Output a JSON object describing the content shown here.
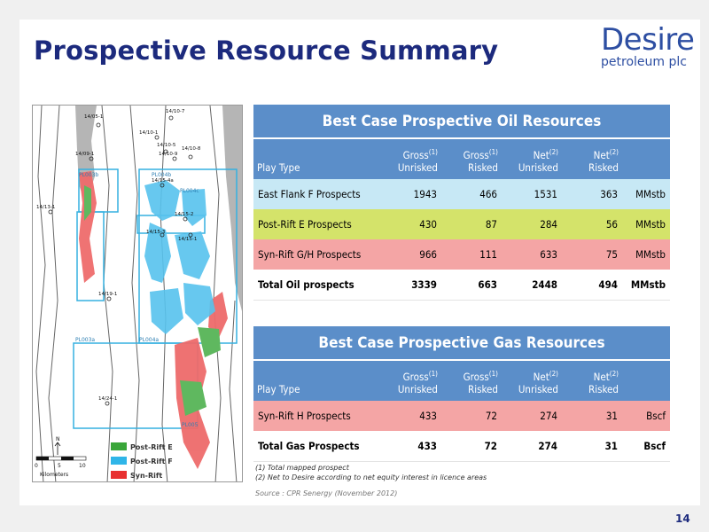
{
  "title": "Prospective Resource Summary",
  "logo": {
    "line1": "Desire",
    "line2": "petroleum plc"
  },
  "map": {
    "labels": {
      "pl003b": "PL003b",
      "pl004b": "PL004b",
      "pl004c": "PL004c",
      "pl003a": "PL003a",
      "pl004a": "PL004a",
      "pl005": "PL005",
      "w1": "14/05-1",
      "w2": "14/09-1",
      "w3": "14/10-7",
      "w4": "14/10-1",
      "w5": "14/10-5",
      "w6": "14/10-9",
      "w7": "14/10-8",
      "w8": "14/13-1",
      "w9": "14/15-4a",
      "w10": "14/15-2",
      "w11": "14/15-3",
      "w12": "14/15-1",
      "w13": "14/19-1",
      "w14": "14/24-1"
    },
    "scale": {
      "ticks": [
        "0",
        "5",
        "10"
      ],
      "unit": "Kilometers",
      "north": "N"
    },
    "legend": [
      {
        "label": "Post-Rift E",
        "color": "#3aa63a"
      },
      {
        "label": "Post-Rift F",
        "color": "#2fb5e8"
      },
      {
        "label": "Syn-Rift",
        "color": "#e83030"
      }
    ]
  },
  "oil": {
    "caption": "Best Case Prospective Oil Resources",
    "headers": {
      "play": "Play Type",
      "gu1": "Gross",
      "gu2": "Unrisked",
      "gr1": "Gross",
      "gr2": "Risked",
      "nu1": "Net",
      "nu2": "Unrisked",
      "nr1": "Net",
      "nr2": "Risked",
      "sup1": "(1)",
      "sup2": "(2)"
    },
    "rows": [
      {
        "play": "East Flank F Prospects",
        "gu": "1943",
        "gr": "466",
        "nu": "1531",
        "nr": "363",
        "unit": "MMstb"
      },
      {
        "play": "Post-Rift E Prospects",
        "gu": "430",
        "gr": "87",
        "nu": "284",
        "nr": "56",
        "unit": "MMstb"
      },
      {
        "play": "Syn-Rift G/H Prospects",
        "gu": "966",
        "gr": "111",
        "nu": "633",
        "nr": "75",
        "unit": "MMstb"
      },
      {
        "play": "Total Oil prospects",
        "gu": "3339",
        "gr": "663",
        "nu": "2448",
        "nr": "494",
        "unit": "MMstb"
      }
    ]
  },
  "gas": {
    "caption": "Best Case Prospective Gas Resources",
    "headers": {
      "play": "Play Type",
      "gu1": "Gross",
      "gu2": "Unrisked",
      "gr1": "Gross",
      "gr2": "Risked",
      "nu1": "Net",
      "nu2": "Unrisked",
      "nr1": "Net",
      "nr2": "Risked",
      "sup1": "(1)",
      "sup2": "(2)"
    },
    "rows": [
      {
        "play": "Syn-Rift H Prospects",
        "gu": "433",
        "gr": "72",
        "nu": "274",
        "nr": "31",
        "unit": "Bscf"
      },
      {
        "play": "Total Gas Prospects",
        "gu": "433",
        "gr": "72",
        "nu": "274",
        "nr": "31",
        "unit": "Bscf"
      }
    ]
  },
  "notes": [
    "(1)  Total mapped prospect",
    "(2)  Net to Desire according to net equity interest in licence areas"
  ],
  "source": "Source : CPR Senergy (November 2012)",
  "page_number": "14"
}
